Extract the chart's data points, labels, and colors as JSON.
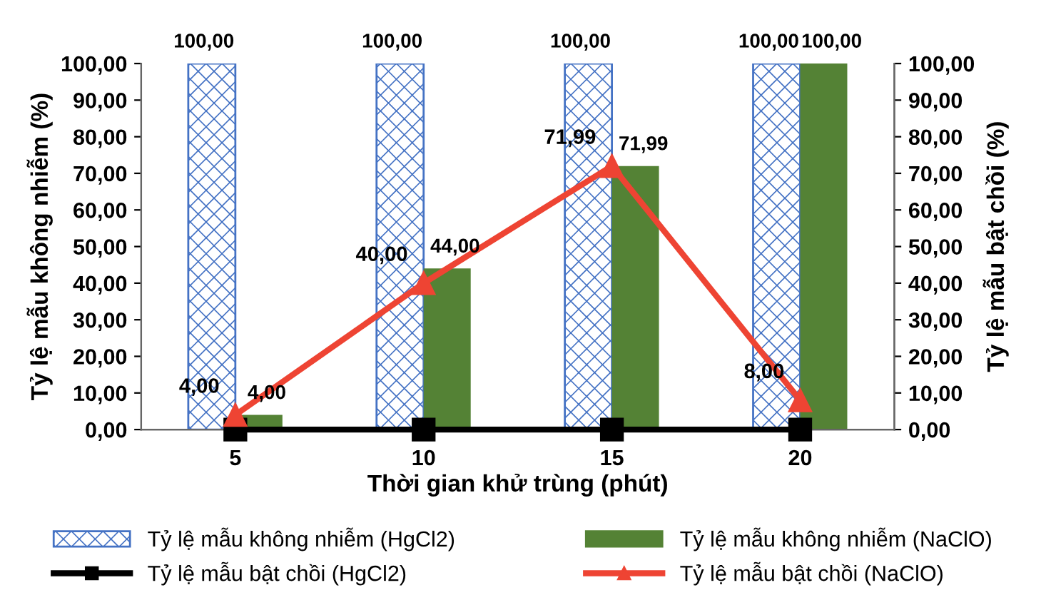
{
  "chart_data": {
    "type": "bar",
    "xlabel": "Thời gian khử trùng (phút)",
    "ylabel": "Tỷ lệ mẫu không nhiễm (%)",
    "y2label": "Tỷ lệ mẫu bật chồi (%)",
    "categories": [
      "5",
      "10",
      "15",
      "20"
    ],
    "series": [
      {
        "name": "Tỷ lệ mẫu không nhiễm (HgCl2)",
        "color": "#4472c4",
        "values": [
          100,
          100,
          100,
          100
        ],
        "value_labels": [
          "100,00",
          "100,00",
          "100,00",
          "100,00"
        ]
      },
      {
        "name": "Tỷ lệ mẫu không nhiễm (NaClO)",
        "color": "#548235",
        "values": [
          4,
          44,
          71.99,
          100
        ],
        "value_labels": [
          "4,00",
          "44,00",
          "71,99",
          "100,00"
        ]
      },
      {
        "name": "Tỷ lệ mẫu bật chồi (HgCl2)",
        "type": "line",
        "axis": "y2",
        "color": "#000000",
        "marker": "square",
        "values": [
          0,
          0,
          0,
          0
        ]
      },
      {
        "name": "Tỷ lệ mẫu bật chồi (NaClO)",
        "type": "line",
        "axis": "y2",
        "color": "#ee4433",
        "marker": "triangle",
        "values": [
          4,
          40,
          71.99,
          8
        ],
        "value_labels": [
          "4,00",
          "40,00",
          "71,99",
          "8,00"
        ]
      }
    ],
    "ylim": [
      0,
      100
    ],
    "yticks": [
      {
        "value": 0,
        "label": "0,00"
      },
      {
        "value": 10,
        "label": "10,00"
      },
      {
        "value": 20,
        "label": "20,00"
      },
      {
        "value": 30,
        "label": "30,00"
      },
      {
        "value": 40,
        "label": "40,00"
      },
      {
        "value": 50,
        "label": "50,00"
      },
      {
        "value": 60,
        "label": "60,00"
      },
      {
        "value": 70,
        "label": "70,00"
      },
      {
        "value": 80,
        "label": "80,00"
      },
      {
        "value": 90,
        "label": "90,00"
      },
      {
        "value": 100,
        "label": "100,00"
      }
    ],
    "y2lim": [
      0,
      100
    ],
    "y2ticks": [
      {
        "value": 0,
        "label": "0,00"
      },
      {
        "value": 10,
        "label": "10,00"
      },
      {
        "value": 20,
        "label": "20,00"
      },
      {
        "value": 30,
        "label": "30,00"
      },
      {
        "value": 40,
        "label": "40,00"
      },
      {
        "value": 50,
        "label": "50,00"
      },
      {
        "value": 60,
        "label": "60,00"
      },
      {
        "value": 70,
        "label": "70,00"
      },
      {
        "value": 80,
        "label": "80,00"
      },
      {
        "value": 90,
        "label": "90,00"
      },
      {
        "value": 100,
        "label": "100,00"
      }
    ],
    "legend": "bottom",
    "grid": false
  }
}
